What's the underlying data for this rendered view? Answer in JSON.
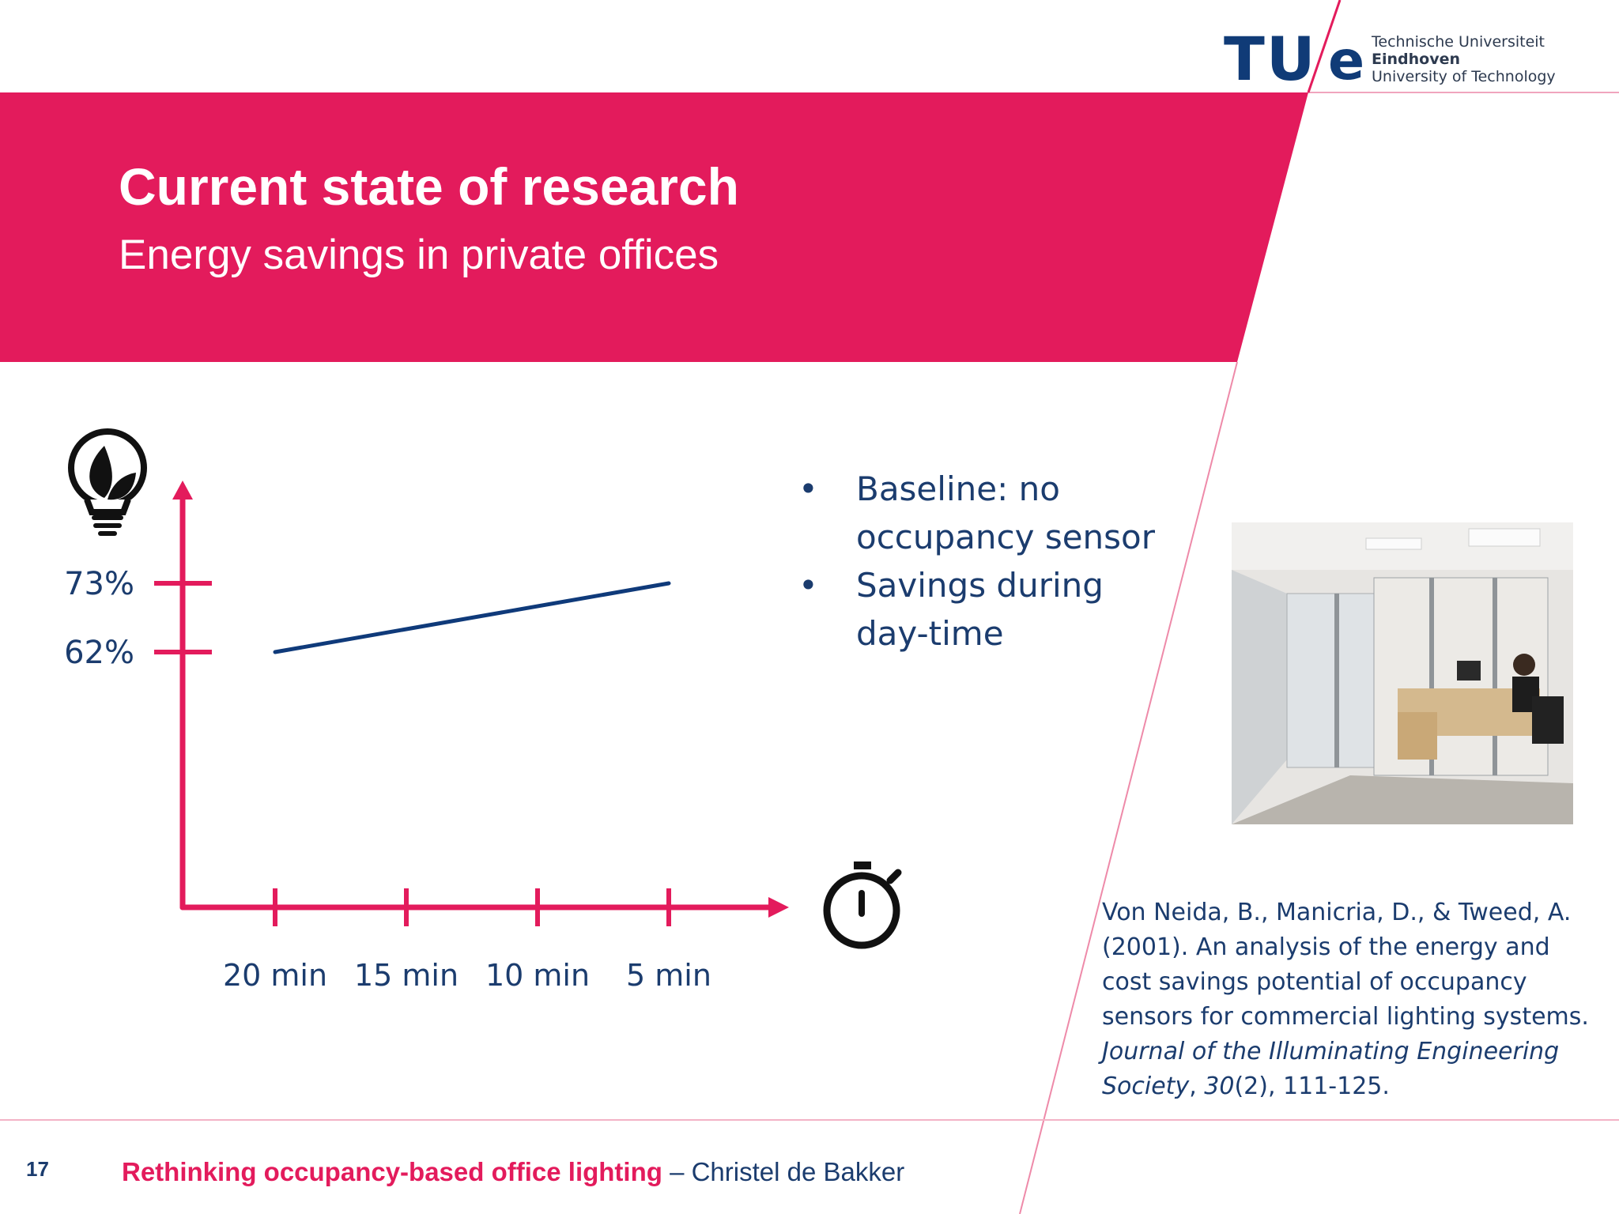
{
  "logo": {
    "mark_left": "TU",
    "mark_right": "e",
    "line1": "Technische Universiteit",
    "line2": "Eindhoven",
    "line3": "University of Technology"
  },
  "header": {
    "title": "Current state of research",
    "subtitle": "Energy savings in private offices"
  },
  "bullets": [
    {
      "line1": "Baseline: no",
      "line2": "occupancy sensor"
    },
    {
      "line1": "Savings during",
      "line2": "day-time"
    }
  ],
  "citation": {
    "authors": "Von Neida, B., Manicria, D., & Tweed, A. (2001). An analysis of the energy and cost savings potential of occupancy sensors for commercial lighting systems.",
    "journal": "Journal of the Illuminating Engineering Society",
    "volume": "30",
    "issue_pages": "(2), 111-125."
  },
  "footer": {
    "page_number": "17",
    "title": "Rethinking occupancy-based office lighting",
    "author": " – Christel de Bakker"
  },
  "icons": {
    "y_axis": "lightbulb-leaf-icon",
    "x_axis": "stopwatch-icon"
  },
  "colors": {
    "brand_magenta": "#e31b5c",
    "navy": "#1b3c6e",
    "axis": "#e31b5c",
    "line": "#0f3a7a"
  },
  "chart_data": {
    "type": "line",
    "x": [
      "20 min",
      "15 min",
      "10 min",
      "5 min"
    ],
    "y_ticks": [
      "73%",
      "62%"
    ],
    "y_tick_values": [
      73,
      62
    ],
    "series": [
      {
        "points": [
          {
            "x": "20 min",
            "y": 62
          },
          {
            "x": "5 min",
            "y": 73
          }
        ]
      }
    ],
    "title": "",
    "xlabel": "",
    "ylabel": "",
    "grid": false
  }
}
